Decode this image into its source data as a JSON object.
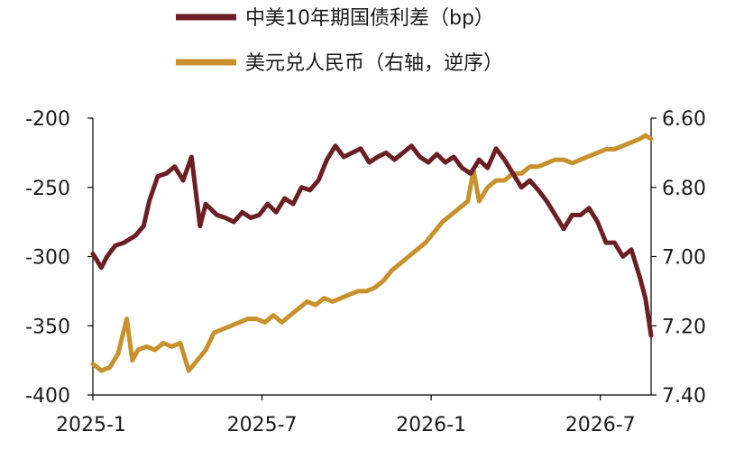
{
  "chart_data": {
    "type": "line",
    "x_ticks": [
      "2025-1",
      "2025-7",
      "2026-1",
      "2026-7"
    ],
    "y_left": {
      "range": [
        -400,
        -200
      ],
      "ticks": [
        "-200",
        "-250",
        "-300",
        "-350",
        "-400"
      ]
    },
    "y_right": {
      "range": [
        6.6,
        7.4
      ],
      "inverted": true,
      "ticks": [
        "6.60",
        "6.80",
        "7.00",
        "7.20",
        "7.40"
      ]
    },
    "legend_position": "top",
    "series": [
      {
        "name": "中美10年期国债利差（bp）",
        "axis": "left",
        "color": "#6b1f24",
        "x": [
          0,
          0.3,
          0.5,
          0.8,
          1.1,
          1.5,
          1.8,
          2.0,
          2.3,
          2.6,
          2.9,
          3.2,
          3.5,
          3.8,
          4.0,
          4.4,
          4.7,
          5.0,
          5.3,
          5.6,
          5.9,
          6.2,
          6.5,
          6.8,
          7.1,
          7.4,
          7.7,
          8.0,
          8.3,
          8.6,
          8.9,
          9.2,
          9.5,
          9.8,
          10.1,
          10.4,
          10.7,
          11.0,
          11.3,
          11.6,
          11.9,
          12.2,
          12.5,
          12.8,
          13.1,
          13.4,
          13.7,
          14.0,
          14.3,
          14.6,
          14.9,
          15.2,
          15.5,
          15.8,
          16.1,
          16.4,
          16.7,
          17.0,
          17.3,
          17.6,
          17.9,
          18.2,
          18.5,
          18.8,
          19.1,
          19.4,
          19.6,
          19.8
        ],
        "values": [
          -298,
          -308,
          -300,
          -292,
          -290,
          -285,
          -278,
          -260,
          -242,
          -240,
          -235,
          -245,
          -228,
          -278,
          -262,
          -270,
          -272,
          -275,
          -268,
          -272,
          -270,
          -262,
          -268,
          -258,
          -262,
          -250,
          -252,
          -245,
          -230,
          -220,
          -228,
          -225,
          -222,
          -232,
          -228,
          -225,
          -230,
          -225,
          -220,
          -228,
          -232,
          -226,
          -232,
          -228,
          -236,
          -240,
          -230,
          -236,
          -222,
          -230,
          -240,
          -250,
          -245,
          -252,
          -260,
          -270,
          -280,
          -270,
          -270,
          -265,
          -275,
          -290,
          -290,
          -300,
          -295,
          -315,
          -330,
          -357
        ]
      },
      {
        "name": "美元兑人民币（右轴，逆序）",
        "axis": "right",
        "color": "#c8912d",
        "x": [
          0,
          0.3,
          0.6,
          0.9,
          1.2,
          1.4,
          1.6,
          1.9,
          2.2,
          2.5,
          2.8,
          3.1,
          3.4,
          3.7,
          4.0,
          4.3,
          4.6,
          4.9,
          5.2,
          5.5,
          5.8,
          6.1,
          6.4,
          6.7,
          7.0,
          7.3,
          7.6,
          7.9,
          8.2,
          8.5,
          8.8,
          9.1,
          9.4,
          9.7,
          10.0,
          10.3,
          10.6,
          10.9,
          11.2,
          11.5,
          11.8,
          12.1,
          12.4,
          12.7,
          13.0,
          13.3,
          13.5,
          13.7,
          14.0,
          14.3,
          14.6,
          14.9,
          15.2,
          15.5,
          15.8,
          16.1,
          16.4,
          16.7,
          17.0,
          17.3,
          17.6,
          17.9,
          18.2,
          18.5,
          18.8,
          19.1,
          19.4,
          19.6,
          19.8
        ],
        "values": [
          7.31,
          7.33,
          7.32,
          7.28,
          7.18,
          7.3,
          7.27,
          7.26,
          7.27,
          7.25,
          7.26,
          7.25,
          7.33,
          7.3,
          7.27,
          7.22,
          7.21,
          7.2,
          7.19,
          7.18,
          7.18,
          7.19,
          7.17,
          7.19,
          7.17,
          7.15,
          7.13,
          7.14,
          7.12,
          7.13,
          7.12,
          7.11,
          7.1,
          7.1,
          7.09,
          7.07,
          7.04,
          7.02,
          7.0,
          6.98,
          6.96,
          6.93,
          6.9,
          6.88,
          6.86,
          6.84,
          6.75,
          6.84,
          6.8,
          6.78,
          6.78,
          6.76,
          6.76,
          6.74,
          6.74,
          6.73,
          6.72,
          6.72,
          6.73,
          6.72,
          6.71,
          6.7,
          6.69,
          6.69,
          6.68,
          6.67,
          6.66,
          6.65,
          6.66
        ]
      }
    ]
  }
}
